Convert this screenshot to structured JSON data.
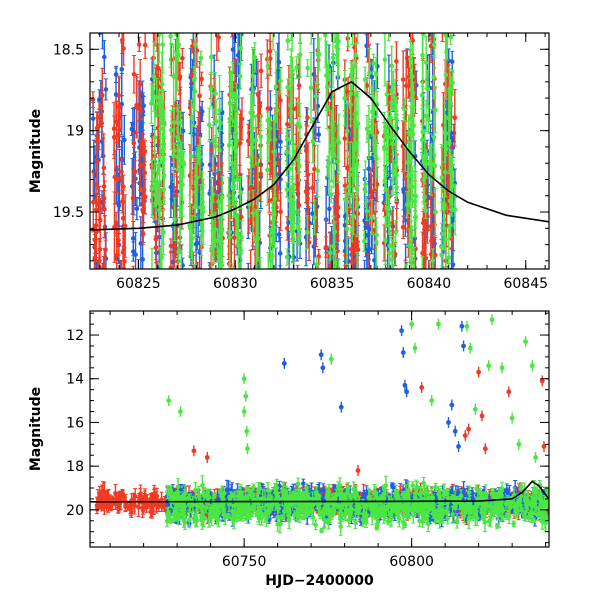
{
  "colors": {
    "blue": "#1f5fe0",
    "red": "#f03a24",
    "green": "#4ce644",
    "model": "#000000"
  },
  "chart_data": [
    {
      "type": "scatter",
      "panel": "top",
      "xlabel": "",
      "ylabel": "Magnitude",
      "xlim": [
        60822.5,
        60846.2
      ],
      "ylim": [
        19.85,
        18.4
      ],
      "y_inverted": true,
      "xticks": [
        60825,
        60830,
        60835,
        60840,
        60845
      ],
      "yticks": [
        18.5,
        19,
        19.5
      ],
      "series": [
        {
          "color": "blue",
          "x_range": [
            60822.5,
            60841.5
          ],
          "y_center": 19.4,
          "y_spread": 0.55
        },
        {
          "color": "red",
          "x_range": [
            60822.5,
            60841.5
          ],
          "y_center": 19.35,
          "y_spread": 0.55
        },
        {
          "color": "green",
          "x_range": [
            60825.5,
            60841.5
          ],
          "y_center": 19.2,
          "y_spread": 0.7
        }
      ],
      "model_curve": {
        "x": [
          60822.5,
          60825,
          60827,
          60829,
          60830,
          60831,
          60832,
          60833,
          60834,
          60835,
          60836,
          60837,
          60838,
          60839,
          60840,
          60841,
          60842,
          60844,
          60846.2
        ],
        "y": [
          19.61,
          19.6,
          19.58,
          19.53,
          19.48,
          19.42,
          19.33,
          19.18,
          18.97,
          18.76,
          18.7,
          18.8,
          18.97,
          19.13,
          19.27,
          19.37,
          19.44,
          19.52,
          19.56
        ]
      }
    },
    {
      "type": "scatter",
      "panel": "bottom",
      "xlabel": "HJD−2400000",
      "ylabel": "Magnitude",
      "xlim": [
        60704,
        60841
      ],
      "ylim": [
        21.7,
        10.9
      ],
      "y_inverted": true,
      "xticks": [
        60750,
        60800
      ],
      "yticks": [
        12,
        14,
        16,
        18,
        20
      ],
      "series": [
        {
          "color": "red",
          "x_range": [
            60706,
            60841
          ],
          "y_center": 19.65,
          "y_spread": 0.5
        },
        {
          "color": "blue",
          "x_range": [
            60727,
            60841
          ],
          "y_center": 19.7,
          "y_spread": 0.7
        },
        {
          "color": "green",
          "x_range": [
            60727,
            60841
          ],
          "y_center": 19.8,
          "y_spread": 0.9
        }
      ],
      "outliers": [
        {
          "color": "green",
          "x": 60727.5,
          "y": 15.0
        },
        {
          "color": "green",
          "x": 60731,
          "y": 15.5
        },
        {
          "color": "red",
          "x": 60735,
          "y": 17.3
        },
        {
          "color": "red",
          "x": 60739,
          "y": 17.6
        },
        {
          "color": "green",
          "x": 60750,
          "y": 14.0
        },
        {
          "color": "green",
          "x": 60750.5,
          "y": 14.8
        },
        {
          "color": "green",
          "x": 60750,
          "y": 15.5
        },
        {
          "color": "green",
          "x": 60750.8,
          "y": 16.4
        },
        {
          "color": "green",
          "x": 60751,
          "y": 17.2
        },
        {
          "color": "blue",
          "x": 60762,
          "y": 13.3
        },
        {
          "color": "blue",
          "x": 60773,
          "y": 12.9
        },
        {
          "color": "blue",
          "x": 60773.5,
          "y": 13.5
        },
        {
          "color": "green",
          "x": 60776,
          "y": 13.1
        },
        {
          "color": "blue",
          "x": 60779,
          "y": 15.3
        },
        {
          "color": "red",
          "x": 60784,
          "y": 18.2
        },
        {
          "color": "blue",
          "x": 60797,
          "y": 11.8
        },
        {
          "color": "blue",
          "x": 60797.5,
          "y": 12.8
        },
        {
          "color": "blue",
          "x": 60798,
          "y": 14.3
        },
        {
          "color": "blue",
          "x": 60798.5,
          "y": 14.6
        },
        {
          "color": "green",
          "x": 60800,
          "y": 11.5
        },
        {
          "color": "green",
          "x": 60801,
          "y": 12.6
        },
        {
          "color": "red",
          "x": 60803,
          "y": 14.4
        },
        {
          "color": "green",
          "x": 60806,
          "y": 15.0
        },
        {
          "color": "green",
          "x": 60808,
          "y": 11.5
        },
        {
          "color": "blue",
          "x": 60811,
          "y": 16.0
        },
        {
          "color": "blue",
          "x": 60812,
          "y": 15.2
        },
        {
          "color": "blue",
          "x": 60813,
          "y": 16.4
        },
        {
          "color": "blue",
          "x": 60814,
          "y": 17.1
        },
        {
          "color": "blue",
          "x": 60815,
          "y": 11.6
        },
        {
          "color": "blue",
          "x": 60815.5,
          "y": 12.5
        },
        {
          "color": "red",
          "x": 60816,
          "y": 16.6
        },
        {
          "color": "red",
          "x": 60817,
          "y": 16.3
        },
        {
          "color": "green",
          "x": 60816.5,
          "y": 11.6
        },
        {
          "color": "green",
          "x": 60817.5,
          "y": 12.6
        },
        {
          "color": "red",
          "x": 60820,
          "y": 13.7
        },
        {
          "color": "green",
          "x": 60819,
          "y": 15.4
        },
        {
          "color": "red",
          "x": 60821,
          "y": 15.7
        },
        {
          "color": "red",
          "x": 60822,
          "y": 17.2
        },
        {
          "color": "green",
          "x": 60823,
          "y": 13.4
        },
        {
          "color": "green",
          "x": 60824,
          "y": 11.3
        },
        {
          "color": "green",
          "x": 60827,
          "y": 13.5
        },
        {
          "color": "red",
          "x": 60829,
          "y": 14.6
        },
        {
          "color": "green",
          "x": 60830,
          "y": 15.8
        },
        {
          "color": "green",
          "x": 60832,
          "y": 17.0
        },
        {
          "color": "green",
          "x": 60834,
          "y": 12.3
        },
        {
          "color": "green",
          "x": 60836,
          "y": 13.4
        },
        {
          "color": "red",
          "x": 60839,
          "y": 14.1
        },
        {
          "color": "red",
          "x": 60839.5,
          "y": 17.1
        },
        {
          "color": "green",
          "x": 60837,
          "y": 17.6
        }
      ],
      "model_curve": {
        "x": [
          60704,
          60780,
          60820,
          60830,
          60833,
          60836,
          60838,
          60840,
          60841
        ],
        "y": [
          19.63,
          19.62,
          19.6,
          19.5,
          19.2,
          18.7,
          18.9,
          19.3,
          19.5
        ]
      }
    }
  ]
}
